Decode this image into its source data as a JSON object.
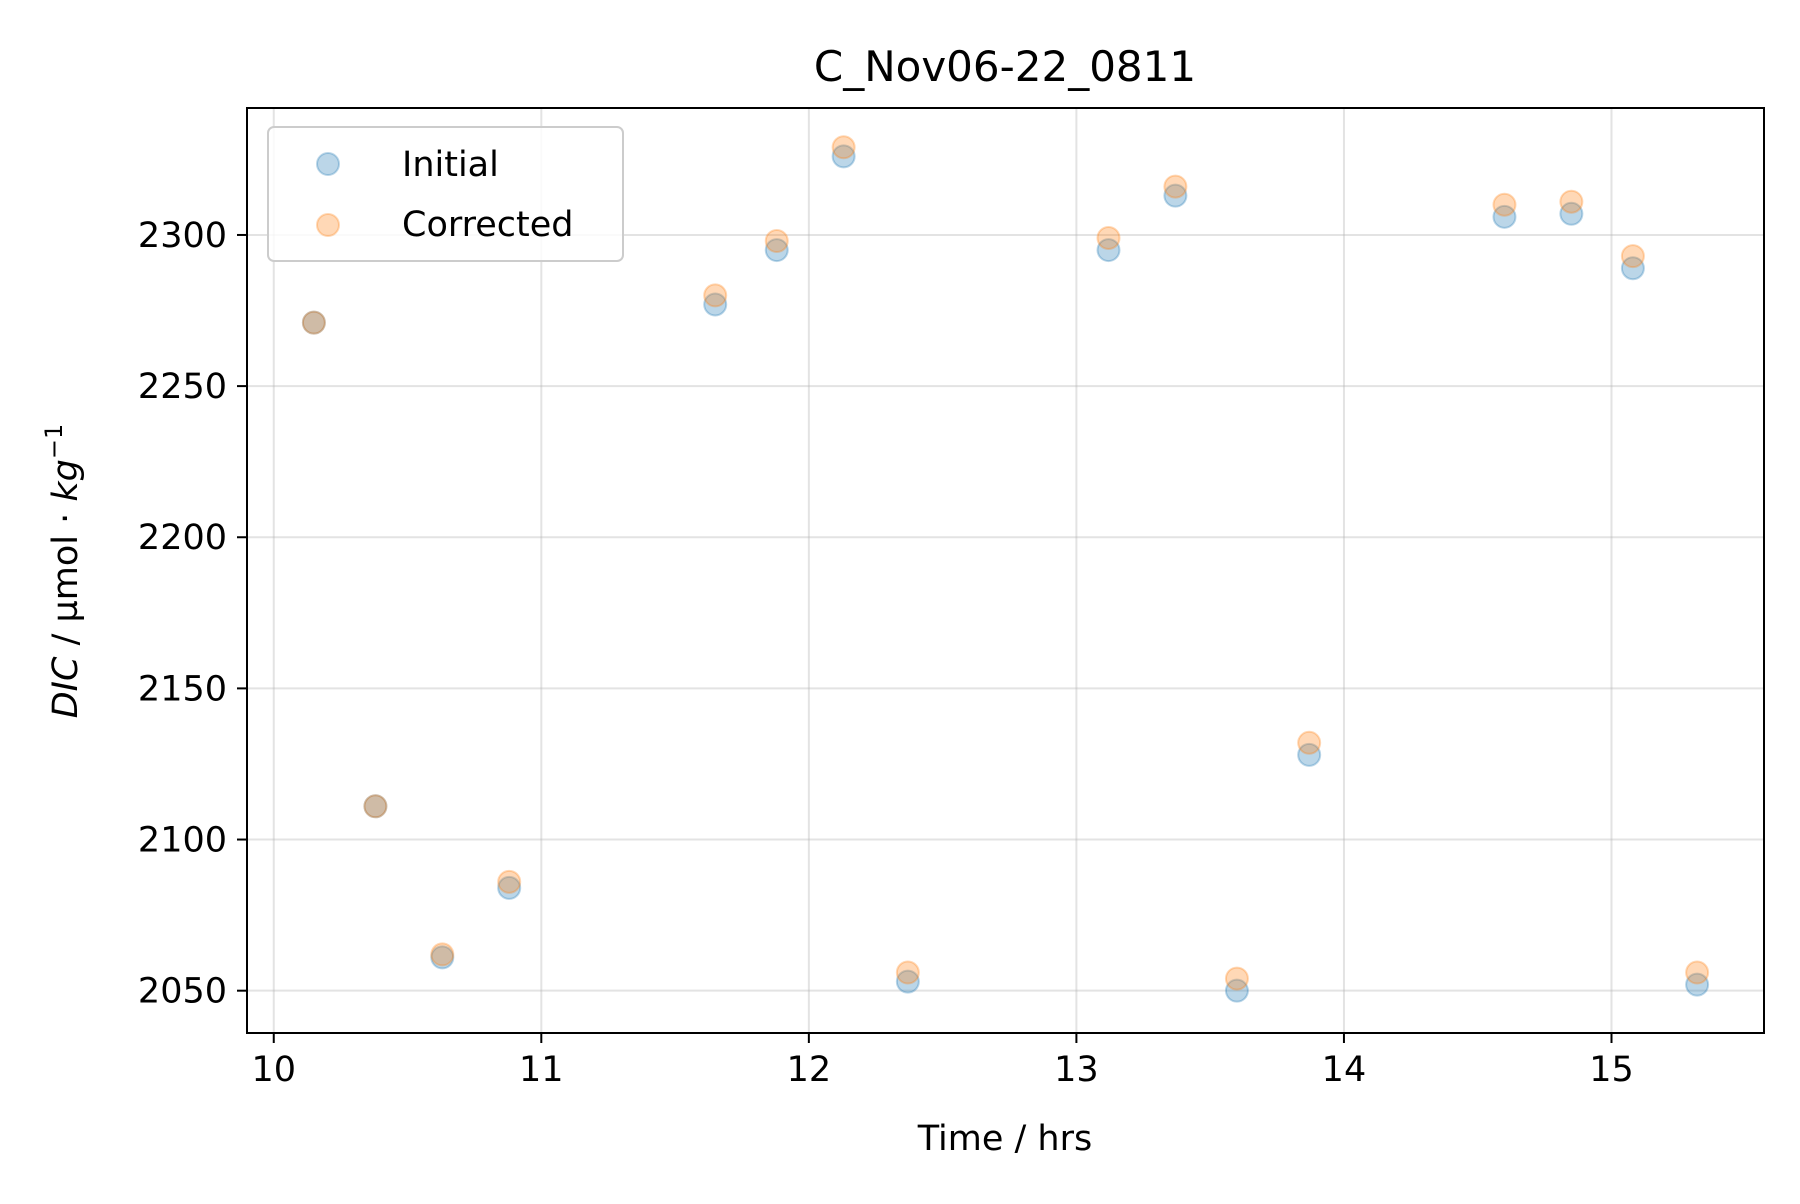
{
  "chart_data": {
    "type": "scatter",
    "title": "C_Nov06-22_0811",
    "xlabel": "Time / hrs",
    "ylabel": {
      "var": "DIC",
      "sep": " / ",
      "unit_pre": "µmol · ",
      "unit_var": "kg",
      "unit_sup": "−1"
    },
    "xlim": [
      9.9,
      15.57
    ],
    "ylim": [
      2036,
      2342
    ],
    "xticks": [
      10,
      11,
      12,
      13,
      14,
      15
    ],
    "yticks": [
      2050,
      2100,
      2150,
      2200,
      2250,
      2300
    ],
    "grid": true,
    "legend_position": "upper-left",
    "series": [
      {
        "name": "Initial",
        "color": "#1f77b4",
        "points": [
          {
            "x": 10.15,
            "y": 2271
          },
          {
            "x": 10.38,
            "y": 2111
          },
          {
            "x": 10.63,
            "y": 2061
          },
          {
            "x": 10.88,
            "y": 2084
          },
          {
            "x": 11.65,
            "y": 2277
          },
          {
            "x": 11.88,
            "y": 2295
          },
          {
            "x": 12.13,
            "y": 2326
          },
          {
            "x": 12.37,
            "y": 2053
          },
          {
            "x": 13.12,
            "y": 2295
          },
          {
            "x": 13.37,
            "y": 2313
          },
          {
            "x": 13.6,
            "y": 2050
          },
          {
            "x": 13.87,
            "y": 2128
          },
          {
            "x": 14.6,
            "y": 2306
          },
          {
            "x": 14.85,
            "y": 2307
          },
          {
            "x": 15.08,
            "y": 2289
          },
          {
            "x": 15.32,
            "y": 2052
          }
        ]
      },
      {
        "name": "Corrected",
        "color": "#ff7f0e",
        "points": [
          {
            "x": 10.15,
            "y": 2271
          },
          {
            "x": 10.38,
            "y": 2111
          },
          {
            "x": 10.63,
            "y": 2062
          },
          {
            "x": 10.88,
            "y": 2086
          },
          {
            "x": 11.65,
            "y": 2280
          },
          {
            "x": 11.88,
            "y": 2298
          },
          {
            "x": 12.13,
            "y": 2329
          },
          {
            "x": 12.37,
            "y": 2056
          },
          {
            "x": 13.12,
            "y": 2299
          },
          {
            "x": 13.37,
            "y": 2316
          },
          {
            "x": 13.6,
            "y": 2054
          },
          {
            "x": 13.87,
            "y": 2132
          },
          {
            "x": 14.6,
            "y": 2310
          },
          {
            "x": 14.85,
            "y": 2311
          },
          {
            "x": 15.08,
            "y": 2293
          },
          {
            "x": 15.32,
            "y": 2056
          }
        ]
      }
    ]
  }
}
